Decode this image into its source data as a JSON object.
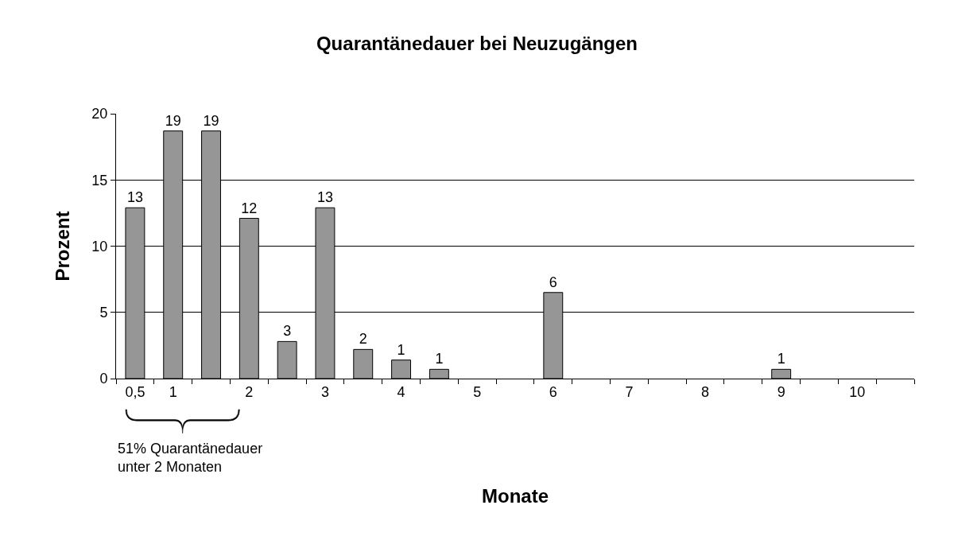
{
  "chart_data": {
    "type": "bar",
    "title": "Quarantänedauer bei Neuzugängen",
    "xlabel": "Monate",
    "ylabel": "Prozent",
    "categories": [
      "0,5",
      "1",
      null,
      "2",
      null,
      "3",
      null,
      "4",
      null,
      "5",
      null,
      "6",
      null,
      "7",
      null,
      "8",
      null,
      "9",
      null,
      "10",
      null
    ],
    "values": [
      12.9,
      18.7,
      18.7,
      12.1,
      2.8,
      12.9,
      2.2,
      1.4,
      0.7,
      null,
      null,
      6.5,
      null,
      null,
      null,
      null,
      null,
      0.7,
      null,
      null,
      null
    ],
    "value_labels": [
      "13",
      "19",
      "19",
      "12",
      "3",
      "13",
      "2",
      "1",
      "1",
      null,
      null,
      "6",
      null,
      null,
      null,
      null,
      null,
      "1",
      null,
      null,
      null
    ],
    "color": "#969696",
    "ylim": [
      0,
      20
    ],
    "yticks": [
      0,
      5,
      10,
      15,
      20
    ],
    "grid": "y",
    "legend": false,
    "annotations": [
      "51% Quarantänedauer\nunter 2 Monaten"
    ]
  }
}
